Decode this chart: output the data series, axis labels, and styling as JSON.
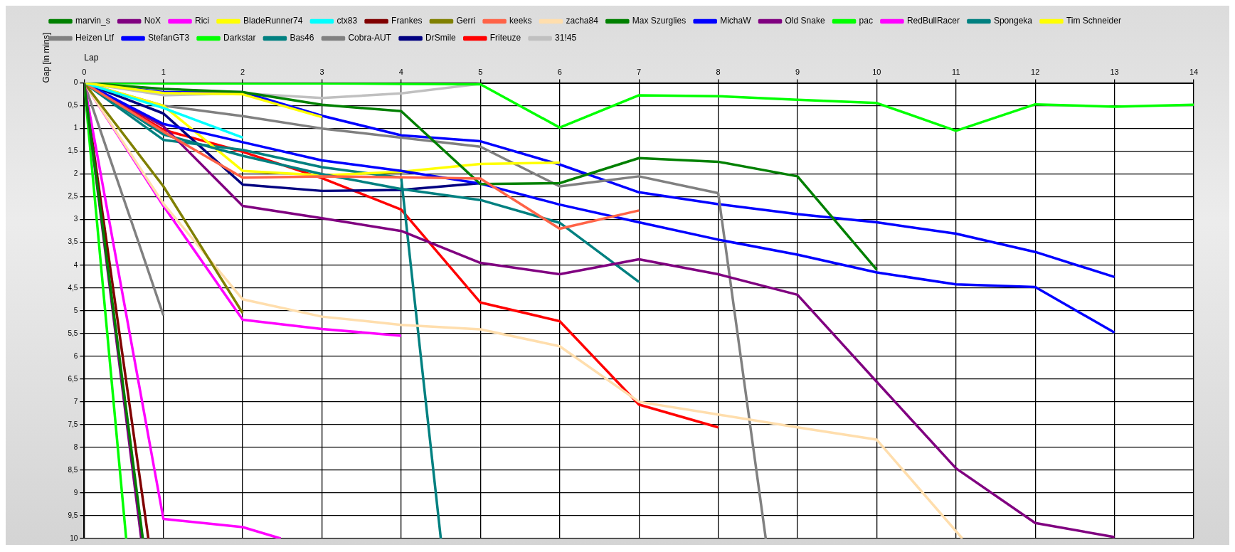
{
  "chart_data": {
    "type": "line",
    "xlabel": "Lap",
    "ylabel": "Gap [in mins]",
    "xlim": [
      0,
      14
    ],
    "xticks": [
      0,
      1,
      2,
      3,
      4,
      5,
      6,
      7,
      8,
      9,
      10,
      11,
      12,
      13,
      14
    ],
    "ylim": [
      10,
      0
    ],
    "yticks": [
      0,
      {
        "value": 0.5,
        "label": "0,5"
      },
      1,
      {
        "value": 1.5,
        "label": "1,5"
      },
      2,
      {
        "value": 2.5,
        "label": "2,5"
      },
      3,
      {
        "value": 3.5,
        "label": "3,5"
      },
      4,
      {
        "value": 4.5,
        "label": "4,5"
      },
      5,
      {
        "value": 5.5,
        "label": "5,5"
      },
      6,
      {
        "value": 6.5,
        "label": "6,5"
      },
      7,
      {
        "value": 7.5,
        "label": "7,5"
      },
      8,
      {
        "value": 8.5,
        "label": "8,5"
      },
      9,
      {
        "value": 9.5,
        "label": "9,5"
      },
      10
    ],
    "grid": true,
    "legend": "top",
    "marker": "none",
    "line_style": "solid",
    "series": [
      {
        "name": "marvin_s",
        "color": "#008000",
        "x": [
          0,
          0.74
        ],
        "values": [
          0,
          10
        ]
      },
      {
        "name": "NoX",
        "color": "#800080",
        "x": [
          0,
          0.72
        ],
        "values": [
          0,
          10
        ]
      },
      {
        "name": "Rici",
        "color": "#ff00ff",
        "x": [
          0,
          1,
          2,
          2.48
        ],
        "values": [
          0,
          9.57,
          9.75,
          10
        ]
      },
      {
        "name": "BladeRunner74",
        "color": "#ffff00",
        "x": [
          0,
          1,
          2,
          3
        ],
        "values": [
          0,
          0.22,
          0.25,
          0.75
        ]
      },
      {
        "name": "ctx83",
        "color": "#00ffff",
        "x": [
          0,
          1,
          2
        ],
        "values": [
          0,
          0.55,
          1.2
        ]
      },
      {
        "name": "Frankes",
        "color": "#800000",
        "x": [
          0,
          0.81
        ],
        "values": [
          0,
          10
        ]
      },
      {
        "name": "Gerri",
        "color": "#808000",
        "x": [
          0,
          1,
          2
        ],
        "values": [
          0,
          2.27,
          5.05
        ]
      },
      {
        "name": "keeks",
        "color": "#ff6347",
        "x": [
          0,
          1,
          2,
          3,
          4,
          5,
          6,
          7
        ],
        "values": [
          0,
          1.07,
          2.08,
          2.05,
          2.07,
          2.1,
          3.2,
          2.8
        ]
      },
      {
        "name": "zacha84",
        "color": "#ffdead",
        "x": [
          0,
          1,
          2,
          3,
          4,
          5,
          6,
          7,
          8,
          9,
          10,
          11.08
        ],
        "values": [
          0,
          2.65,
          4.75,
          5.13,
          5.31,
          5.41,
          5.78,
          7.0,
          7.28,
          7.56,
          7.83,
          10
        ]
      },
      {
        "name": "Max Szurglies",
        "color": "#008000",
        "x": [
          0,
          1,
          2,
          3,
          4,
          5,
          6,
          7,
          8,
          9,
          10
        ],
        "values": [
          0,
          0.13,
          0.2,
          0.48,
          0.62,
          2.22,
          2.2,
          1.65,
          1.73,
          2.05,
          4.1
        ]
      },
      {
        "name": "MichaW",
        "color": "#0000ff",
        "x": [
          0,
          1,
          2,
          3,
          4,
          5,
          6,
          7,
          8,
          9,
          10,
          11,
          12,
          13
        ],
        "values": [
          0,
          0.9,
          1.3,
          1.7,
          1.93,
          2.21,
          2.67,
          3.06,
          3.44,
          3.77,
          4.16,
          4.42,
          4.48,
          5.48
        ]
      },
      {
        "name": "Old Snake",
        "color": "#800080",
        "x": [
          0,
          1,
          2,
          3,
          4,
          5,
          6,
          7,
          8,
          9,
          10,
          11,
          12,
          13
        ],
        "values": [
          0,
          0.95,
          2.7,
          2.97,
          3.25,
          3.95,
          4.2,
          3.87,
          4.2,
          4.65,
          6.56,
          8.46,
          9.66,
          9.97
        ]
      },
      {
        "name": "pac",
        "color": "#00ff00",
        "x": [
          0,
          1,
          2,
          3,
          4,
          5,
          6,
          7,
          8,
          9,
          10,
          11,
          12,
          13,
          14
        ],
        "values": [
          0,
          0.01,
          0.01,
          0.01,
          0.02,
          0.03,
          0.98,
          0.27,
          0.29,
          0.37,
          0.44,
          1.05,
          0.47,
          0.52,
          0.48
        ]
      },
      {
        "name": "RedBullRacer",
        "color": "#ff00ff",
        "x": [
          0,
          1,
          2,
          3,
          4
        ],
        "values": [
          0,
          2.7,
          5.2,
          5.4,
          5.55
        ]
      },
      {
        "name": "Spongeka",
        "color": "#008080",
        "x": [
          0,
          1,
          2,
          3,
          4,
          5,
          6,
          7
        ],
        "values": [
          0,
          1.13,
          1.6,
          2.0,
          2.33,
          2.57,
          3.07,
          4.37
        ]
      },
      {
        "name": "Tim Schneider",
        "color": "#ffff00",
        "x": [
          0,
          1,
          2,
          3,
          4,
          5,
          6
        ],
        "values": [
          0,
          0.5,
          1.93,
          2.03,
          1.95,
          1.78,
          1.75
        ]
      },
      {
        "name": "Heizen Ltf",
        "color": "#808080",
        "x": [
          0,
          1,
          2,
          3,
          4,
          5,
          6,
          7,
          8,
          8.6
        ],
        "values": [
          0,
          0.5,
          0.73,
          1.0,
          1.2,
          1.4,
          2.27,
          2.05,
          2.42,
          10
        ]
      },
      {
        "name": "StefanGT3",
        "color": "#0000ff",
        "x": [
          0,
          1,
          2,
          3,
          4,
          5,
          6,
          7,
          8,
          9,
          10,
          11,
          12,
          13
        ],
        "values": [
          0,
          0.2,
          0.2,
          0.72,
          1.15,
          1.28,
          1.79,
          2.4,
          2.66,
          2.88,
          3.06,
          3.31,
          3.71,
          4.26
        ]
      },
      {
        "name": "Darkstar",
        "color": "#00ff00",
        "x": [
          0,
          0.53
        ],
        "values": [
          0,
          10
        ]
      },
      {
        "name": "Bas46",
        "color": "#008080",
        "x": [
          0,
          1,
          2,
          3,
          4,
          4.5
        ],
        "values": [
          0,
          1.25,
          1.47,
          1.85,
          2.08,
          10
        ]
      },
      {
        "name": "Cobra-AUT",
        "color": "#808080",
        "x": [
          0,
          1
        ],
        "values": [
          0,
          5.1
        ]
      },
      {
        "name": "DrSmile",
        "color": "#000080",
        "x": [
          0,
          1,
          2,
          3,
          4,
          5
        ],
        "values": [
          0,
          0.67,
          2.23,
          2.37,
          2.35,
          2.2
        ]
      },
      {
        "name": "Friteuze",
        "color": "#ff0000",
        "x": [
          0,
          1,
          2,
          3,
          4,
          5,
          6,
          7,
          8
        ],
        "values": [
          0,
          1.03,
          1.51,
          2.09,
          2.78,
          4.82,
          5.23,
          7.06,
          7.56
        ]
      },
      {
        "name": "31!45",
        "color": "#c0c0c0",
        "x": [
          0,
          1,
          2,
          3,
          4,
          5
        ],
        "values": [
          0,
          0.27,
          0.23,
          0.33,
          0.23,
          0.02
        ]
      }
    ]
  }
}
